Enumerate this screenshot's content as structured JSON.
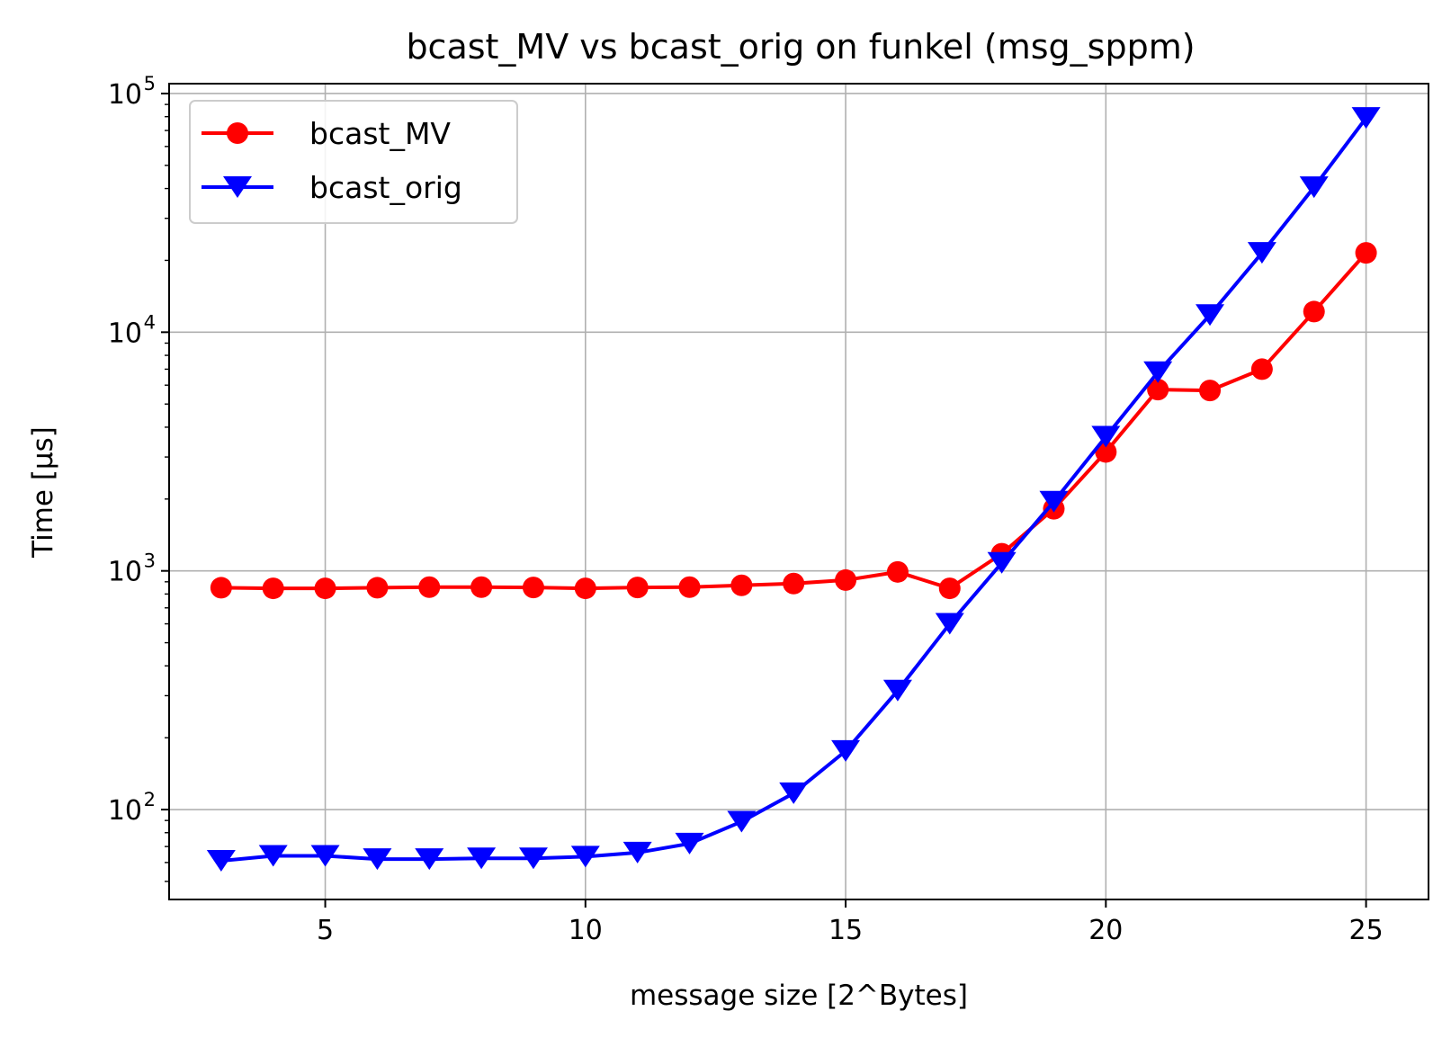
{
  "chart_data": {
    "type": "line",
    "title": "bcast_MV vs bcast_orig on funkel (msg_sppm)",
    "xlabel": "message size [2^Bytes]",
    "ylabel": "Time [µs]",
    "xscale": "linear",
    "yscale": "log",
    "xlim": [
      2,
      26.2
    ],
    "ylim": [
      42,
      110000
    ],
    "xticks": [
      5,
      10,
      15,
      20,
      25
    ],
    "yticks": [
      {
        "value": 100,
        "base": "10",
        "exp": "2"
      },
      {
        "value": 1000,
        "base": "10",
        "exp": "3"
      },
      {
        "value": 10000,
        "base": "10",
        "exp": "4"
      },
      {
        "value": 100000,
        "base": "10",
        "exp": "5"
      }
    ],
    "grid": true,
    "legend_position": "top-left",
    "x": [
      3,
      4,
      5,
      6,
      7,
      8,
      9,
      10,
      11,
      12,
      13,
      14,
      15,
      16,
      17,
      18,
      19,
      20,
      21,
      22,
      23,
      24,
      25
    ],
    "series": [
      {
        "name": "bcast_MV",
        "color": "#ff0000",
        "marker": "circle",
        "values": [
          850,
          845,
          845,
          850,
          855,
          855,
          852,
          845,
          852,
          855,
          870,
          885,
          915,
          990,
          845,
          1180,
          1820,
          3150,
          5750,
          5700,
          7000,
          12200,
          21500
        ]
      },
      {
        "name": "bcast_orig",
        "color": "#0000ff",
        "marker": "triangle-down",
        "values": [
          61,
          64,
          64,
          62,
          62,
          62.5,
          62.5,
          63.5,
          66,
          72,
          89,
          117,
          176,
          315,
          600,
          1080,
          1950,
          3650,
          6800,
          11800,
          21500,
          40500,
          79000
        ]
      }
    ]
  }
}
